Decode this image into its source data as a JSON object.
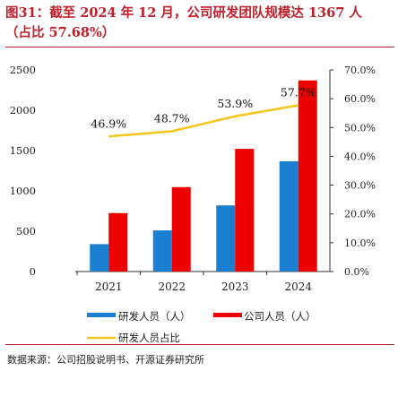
{
  "figure": {
    "title_line1": "图31：截至 2024 年 12 月，公司研发团队规模达 1367 人",
    "title_line2": "（占比 57.68%）",
    "source": "数据来源：公司招股说明书、开源证券研究所"
  },
  "colors": {
    "title": "#c0202a",
    "rd_staff_bar": "#1a7fd1",
    "company_staff_bar": "#ee0000",
    "ratio_line": "#f5c518"
  },
  "chart_data": {
    "type": "bar",
    "categories": [
      "2021",
      "2022",
      "2023",
      "2024"
    ],
    "series": [
      {
        "name": "研发人员（人）",
        "kind": "bar",
        "axis": "left",
        "values": [
          340,
          510,
          820,
          1367
        ]
      },
      {
        "name": "公司人员（人）",
        "kind": "bar",
        "axis": "left",
        "values": [
          725,
          1047,
          1521,
          2370
        ]
      },
      {
        "name": "研发人员占比",
        "kind": "line",
        "axis": "right",
        "values": [
          46.9,
          48.7,
          53.9,
          57.7
        ]
      }
    ],
    "data_labels": [
      "46.9%",
      "48.7%",
      "53.9%",
      "57.7%"
    ],
    "y_left": {
      "min": 0,
      "max": 2500,
      "ticks": [
        "0",
        "500",
        "1000",
        "1500",
        "2000",
        "2500"
      ]
    },
    "y_right": {
      "min": 0,
      "max": 70,
      "ticks": [
        "0.0%",
        "10.0%",
        "20.0%",
        "30.0%",
        "40.0%",
        "50.0%",
        "60.0%",
        "70.0%"
      ]
    },
    "grid": false,
    "legend_position": "bottom"
  }
}
